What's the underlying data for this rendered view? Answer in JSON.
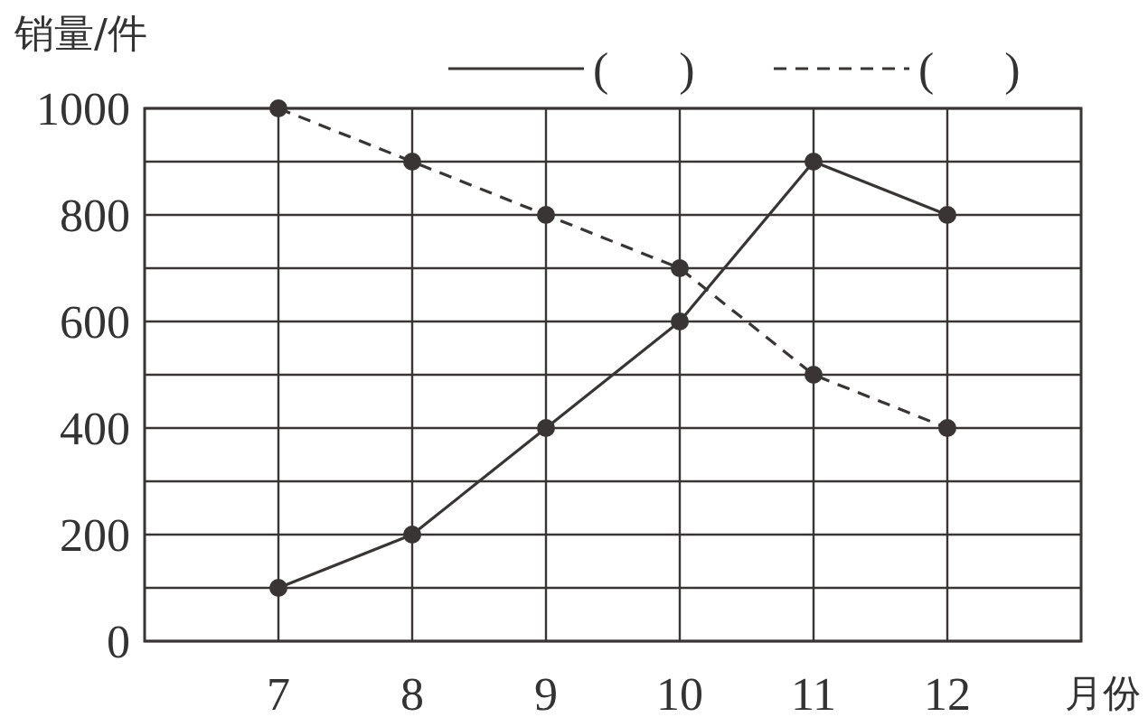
{
  "chart_data": {
    "type": "line",
    "xlabel": "月份",
    "ylabel": "销量/件",
    "x": [
      7,
      8,
      9,
      10,
      11,
      12
    ],
    "xlim": [
      6,
      13
    ],
    "xticks": [
      7,
      8,
      9,
      10,
      11,
      12
    ],
    "ylim": [
      0,
      1000
    ],
    "yticks": [
      0,
      {
        "value": 100,
        "label": null
      },
      200,
      {
        "value": 300,
        "label": null
      },
      400,
      {
        "value": 500,
        "label": null
      },
      600,
      {
        "value": 700,
        "label": null
      },
      800,
      {
        "value": 900,
        "label": null
      },
      1000
    ],
    "series": [
      {
        "name": "(      )",
        "color": "#3a3535",
        "values": [
          100,
          200,
          400,
          600,
          900,
          800
        ],
        "line_style": "solid"
      },
      {
        "name": "(      )",
        "color": "#3a3535",
        "values": [
          1000,
          900,
          800,
          700,
          500,
          400
        ],
        "line_style": "dashed"
      }
    ],
    "grid": true,
    "legend": "top right",
    "marker": "circle"
  }
}
